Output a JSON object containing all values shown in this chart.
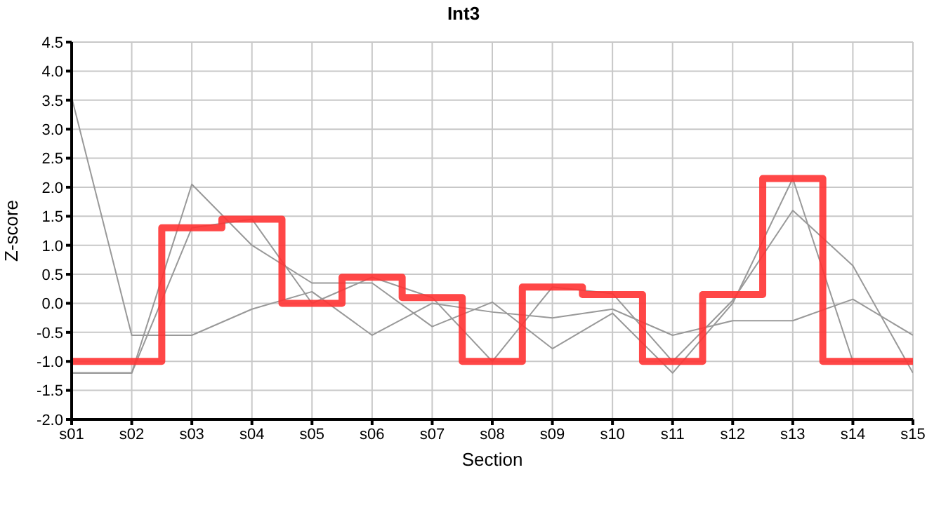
{
  "chart_data": {
    "type": "line",
    "title": "Int3",
    "xlabel": "Section",
    "ylabel": "Z-score",
    "categories": [
      "s01",
      "s02",
      "s03",
      "s04",
      "s05",
      "s06",
      "s07",
      "s08",
      "s09",
      "s10",
      "s11",
      "s12",
      "s13",
      "s14",
      "s15"
    ],
    "series": [
      {
        "color": "#999999",
        "values": [
          3.55,
          -0.55,
          -0.55,
          -0.1,
          0.2,
          -0.55,
          0.0,
          -0.15,
          -0.25,
          -0.1,
          -0.55,
          -0.3,
          -0.3,
          0.07,
          -0.55
        ]
      },
      {
        "color": "#999999",
        "values": [
          -1.2,
          -1.2,
          2.05,
          1.0,
          0.35,
          0.35,
          -0.4,
          0.02,
          -0.78,
          -0.17,
          -1.2,
          0.0,
          2.15,
          -1.0,
          -1.0
        ]
      },
      {
        "color": "#999999",
        "values": [
          -1.2,
          -1.2,
          1.3,
          1.45,
          0.0,
          0.45,
          0.1,
          -1.0,
          0.28,
          0.17,
          -1.0,
          0.05,
          1.6,
          0.65,
          -1.2
        ]
      },
      {
        "type": "step",
        "color": "#ff3333",
        "values": [
          -1,
          -1,
          1.3,
          1.45,
          0,
          0.45,
          0.1,
          -1,
          0.28,
          0.15,
          -1,
          0.15,
          2.15,
          -1,
          -1
        ]
      }
    ],
    "ylim": [
      -2,
      4.5
    ],
    "yticks": [
      {
        "value": -2,
        "label": "-2.0"
      },
      {
        "value": -1.5,
        "label": "-1.5"
      },
      {
        "value": -1,
        "label": "-1.0"
      },
      {
        "value": -0.5,
        "label": "-0.5"
      },
      {
        "value": 0,
        "label": "0.0"
      },
      {
        "value": 0.5,
        "label": "0.5"
      },
      {
        "value": 1,
        "label": "1.0"
      },
      {
        "value": 1.5,
        "label": "1.5"
      },
      {
        "value": 2,
        "label": "2.0"
      },
      {
        "value": 2.5,
        "label": "2.5"
      },
      {
        "value": 3,
        "label": "3.0"
      },
      {
        "value": 3.5,
        "label": "3.5"
      },
      {
        "value": 4,
        "label": "4.0"
      },
      {
        "value": 4.5,
        "label": "4.5"
      }
    ],
    "grid": true,
    "marker": "none"
  }
}
